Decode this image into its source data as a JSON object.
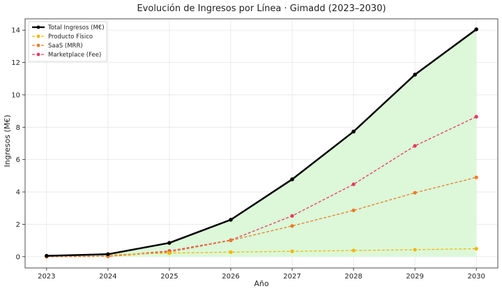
{
  "chart_data": {
    "type": "line",
    "title": "Evolución de Ingresos por Línea · Gimadd (2023–2030)",
    "xlabel": "Año",
    "ylabel": "Ingresos (M€)",
    "x": [
      2023,
      2024,
      2025,
      2026,
      2027,
      2028,
      2029,
      2030
    ],
    "xlim": [
      2022.65,
      2030.35
    ],
    "ylim": [
      -0.7,
      14.7
    ],
    "yticks": [
      0,
      2,
      4,
      6,
      8,
      10,
      12,
      14
    ],
    "grid": true,
    "legend_position": "top-left",
    "fill": {
      "under_series": "Total Ingresos (M€)",
      "color": "#dcf8d9"
    },
    "series": [
      {
        "name": "Total Ingresos (M€)",
        "style": "solid",
        "color": "#000000",
        "values": [
          0.05,
          0.15,
          0.85,
          2.28,
          4.78,
          7.73,
          11.25,
          14.05
        ]
      },
      {
        "name": "Producto Físico",
        "style": "dashed",
        "color": "#f2b705",
        "values": [
          0.03,
          0.12,
          0.22,
          0.28,
          0.33,
          0.38,
          0.43,
          0.49
        ]
      },
      {
        "name": "SaaS (MRR)",
        "style": "dashed",
        "color": "#ec7a28",
        "values": [
          0.0,
          0.02,
          0.28,
          1.0,
          1.9,
          2.86,
          3.95,
          4.9
        ]
      },
      {
        "name": "Marketplace (Fee)",
        "style": "dashed",
        "color": "#e63a5a",
        "values": [
          0.0,
          0.02,
          0.35,
          1.02,
          2.52,
          4.47,
          6.85,
          8.65
        ]
      }
    ]
  }
}
